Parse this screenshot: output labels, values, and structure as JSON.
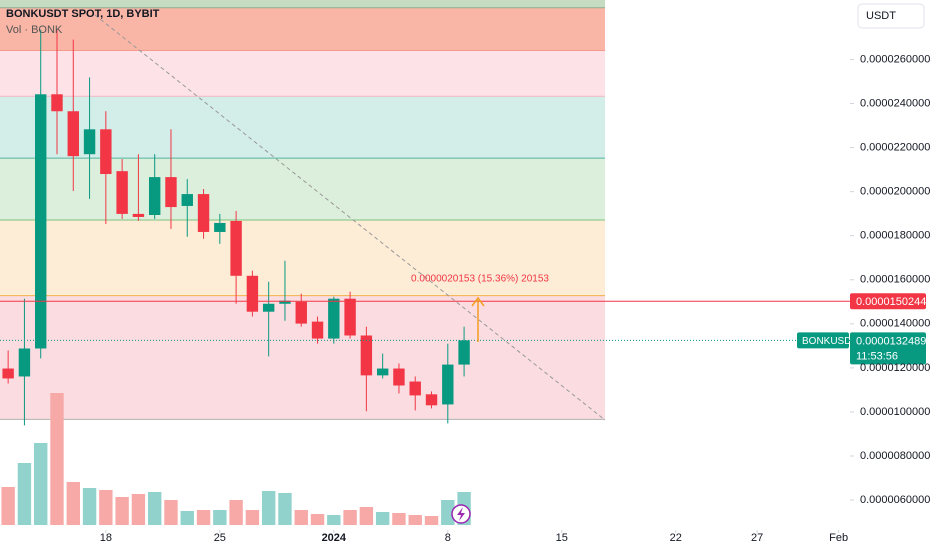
{
  "chart_data": {
    "type": "candlestick",
    "title": "BONKUSDT SPOT, 1D, BYBIT",
    "subtitle": "Vol · BONK",
    "currency": "USDT",
    "symbol": "BONKUSDT",
    "countdown": "11:53:56",
    "measure_label": "0.0000020153 (15.36%) 20153",
    "up_color": "#089981",
    "down_color": "#f23645",
    "volume_up_color": "#92d2cc",
    "volume_down_color": "#f7a9a7",
    "x": [
      0,
      1,
      2,
      3,
      4,
      5,
      6,
      7,
      8,
      9,
      10,
      11,
      12,
      13,
      14,
      15,
      16,
      17,
      18,
      19,
      20,
      21,
      22,
      23,
      24,
      25,
      26,
      27,
      28
    ],
    "open": [
      1.197e-05,
      1.161e-05,
      1.288e-05,
      2.442e-05,
      2.365e-05,
      2.17e-05,
      2.283e-05,
      2.093e-05,
      1.899e-05,
      1.894e-05,
      2.066e-05,
      1.935e-05,
      1.989e-05,
      1.817e-05,
      1.867e-05,
      1.618e-05,
      1.455e-05,
      1.491e-05,
      1.5e-05,
      1.41e-05,
      1.333e-05,
      1.514e-05,
      1.347e-05,
      1.166e-05,
      1.197e-05,
      1.138e-05,
      1.08e-05,
      1.034e-05,
      1.215e-05
    ],
    "high": [
      1.279e-05,
      1.514e-05,
      2.736e-05,
      2.736e-05,
      2.69e-05,
      2.519e-05,
      2.365e-05,
      2.148e-05,
      2.17e-05,
      2.17e-05,
      2.283e-05,
      2.057e-05,
      2.012e-05,
      1.899e-05,
      1.912e-05,
      1.641e-05,
      1.591e-05,
      1.686e-05,
      1.537e-05,
      1.433e-05,
      1.523e-05,
      1.546e-05,
      1.387e-05,
      1.265e-05,
      1.22e-05,
      1.161e-05,
      1.093e-05,
      1.31e-05,
      1.387e-05
    ],
    "low": [
      1.129e-05,
      9.39e-06,
      1.243e-05,
      2.17e-05,
      2.003e-05,
      1.967e-05,
      1.853e-05,
      1.876e-05,
      1.867e-05,
      1.876e-05,
      1.831e-05,
      1.795e-05,
      1.786e-05,
      1.763e-05,
      1.491e-05,
      1.433e-05,
      1.252e-05,
      1.414e-05,
      1.387e-05,
      1.31e-05,
      1.31e-05,
      1.333e-05,
      1.003e-05,
      1.152e-05,
      1.084e-05,
      1.007e-05,
      1.016e-05,
      9.48e-06,
      1.161e-05
    ],
    "close": [
      1.152e-05,
      1.288e-05,
      2.442e-05,
      2.365e-05,
      2.161e-05,
      2.283e-05,
      2.08e-05,
      1.899e-05,
      1.885e-05,
      2.066e-05,
      1.93e-05,
      1.989e-05,
      1.817e-05,
      1.858e-05,
      1.618e-05,
      1.455e-05,
      1.491e-05,
      1.505e-05,
      1.401e-05,
      1.333e-05,
      1.514e-05,
      1.347e-05,
      1.166e-05,
      1.197e-05,
      1.12e-05,
      1.075e-05,
      1.03e-05,
      1.215e-05,
      1.32489e-05
    ],
    "volume": [
      38,
      62,
      82,
      132,
      43,
      37,
      35,
      28,
      31,
      33,
      25,
      14,
      15,
      15,
      25,
      15,
      34,
      32,
      15,
      11,
      10,
      15,
      18,
      13,
      12,
      10,
      9,
      25,
      33
    ],
    "volume_ylim": [
      0,
      140
    ],
    "ylim": [
      4.64e-06,
      2.87e-05
    ],
    "yticks": [
      {
        "value": 2.6e-05,
        "label": "0.0000260000"
      },
      {
        "value": 2.4e-05,
        "label": "0.0000240000"
      },
      {
        "value": 2.2e-05,
        "label": "0.0000220000"
      },
      {
        "value": 2e-05,
        "label": "0.0000200000"
      },
      {
        "value": 1.8e-05,
        "label": "0.0000180000"
      },
      {
        "value": 1.6e-05,
        "label": "0.0000160000"
      },
      {
        "value": 1.4e-05,
        "label": "0.0000140000"
      },
      {
        "value": 1.2e-05,
        "label": "0.0000120000"
      },
      {
        "value": 1e-05,
        "label": "0.0000100000"
      },
      {
        "value": 8e-06,
        "label": "0.0000080000"
      },
      {
        "value": 6e-06,
        "label": "0.0000060000"
      }
    ],
    "xlim": [
      -0.5,
      51.7
    ],
    "xticks": [
      {
        "value": 6,
        "label": "18"
      },
      {
        "value": 13,
        "label": "25"
      },
      {
        "value": 20,
        "label": "2024"
      },
      {
        "value": 27,
        "label": "8"
      },
      {
        "value": 34,
        "label": "15"
      },
      {
        "value": 41,
        "label": "22"
      },
      {
        "value": 46,
        "label": "27"
      },
      {
        "value": 51,
        "label": "Feb"
      }
    ],
    "fib_levels": [
      2.835e-05,
      2.641e-05,
      2.433e-05,
      2.152e-05,
      1.871e-05,
      1.528e-05,
      9.66e-06
    ],
    "fib_colors": [
      "#c5dcc2",
      "#f9b5a6",
      "#fde3e8",
      "#d3ede8",
      "#dcefdc",
      "#fdecd6",
      "#fbdde1"
    ],
    "fib_line_colors": [
      "#8fae8c",
      "#f29a8c",
      "#f3b6c2",
      "#52b5a0",
      "#7cc47f",
      "#f5b04a",
      "#b0b0b0"
    ],
    "price_line": 1.50244e-05,
    "price_line_color": "#f23645"
  }
}
